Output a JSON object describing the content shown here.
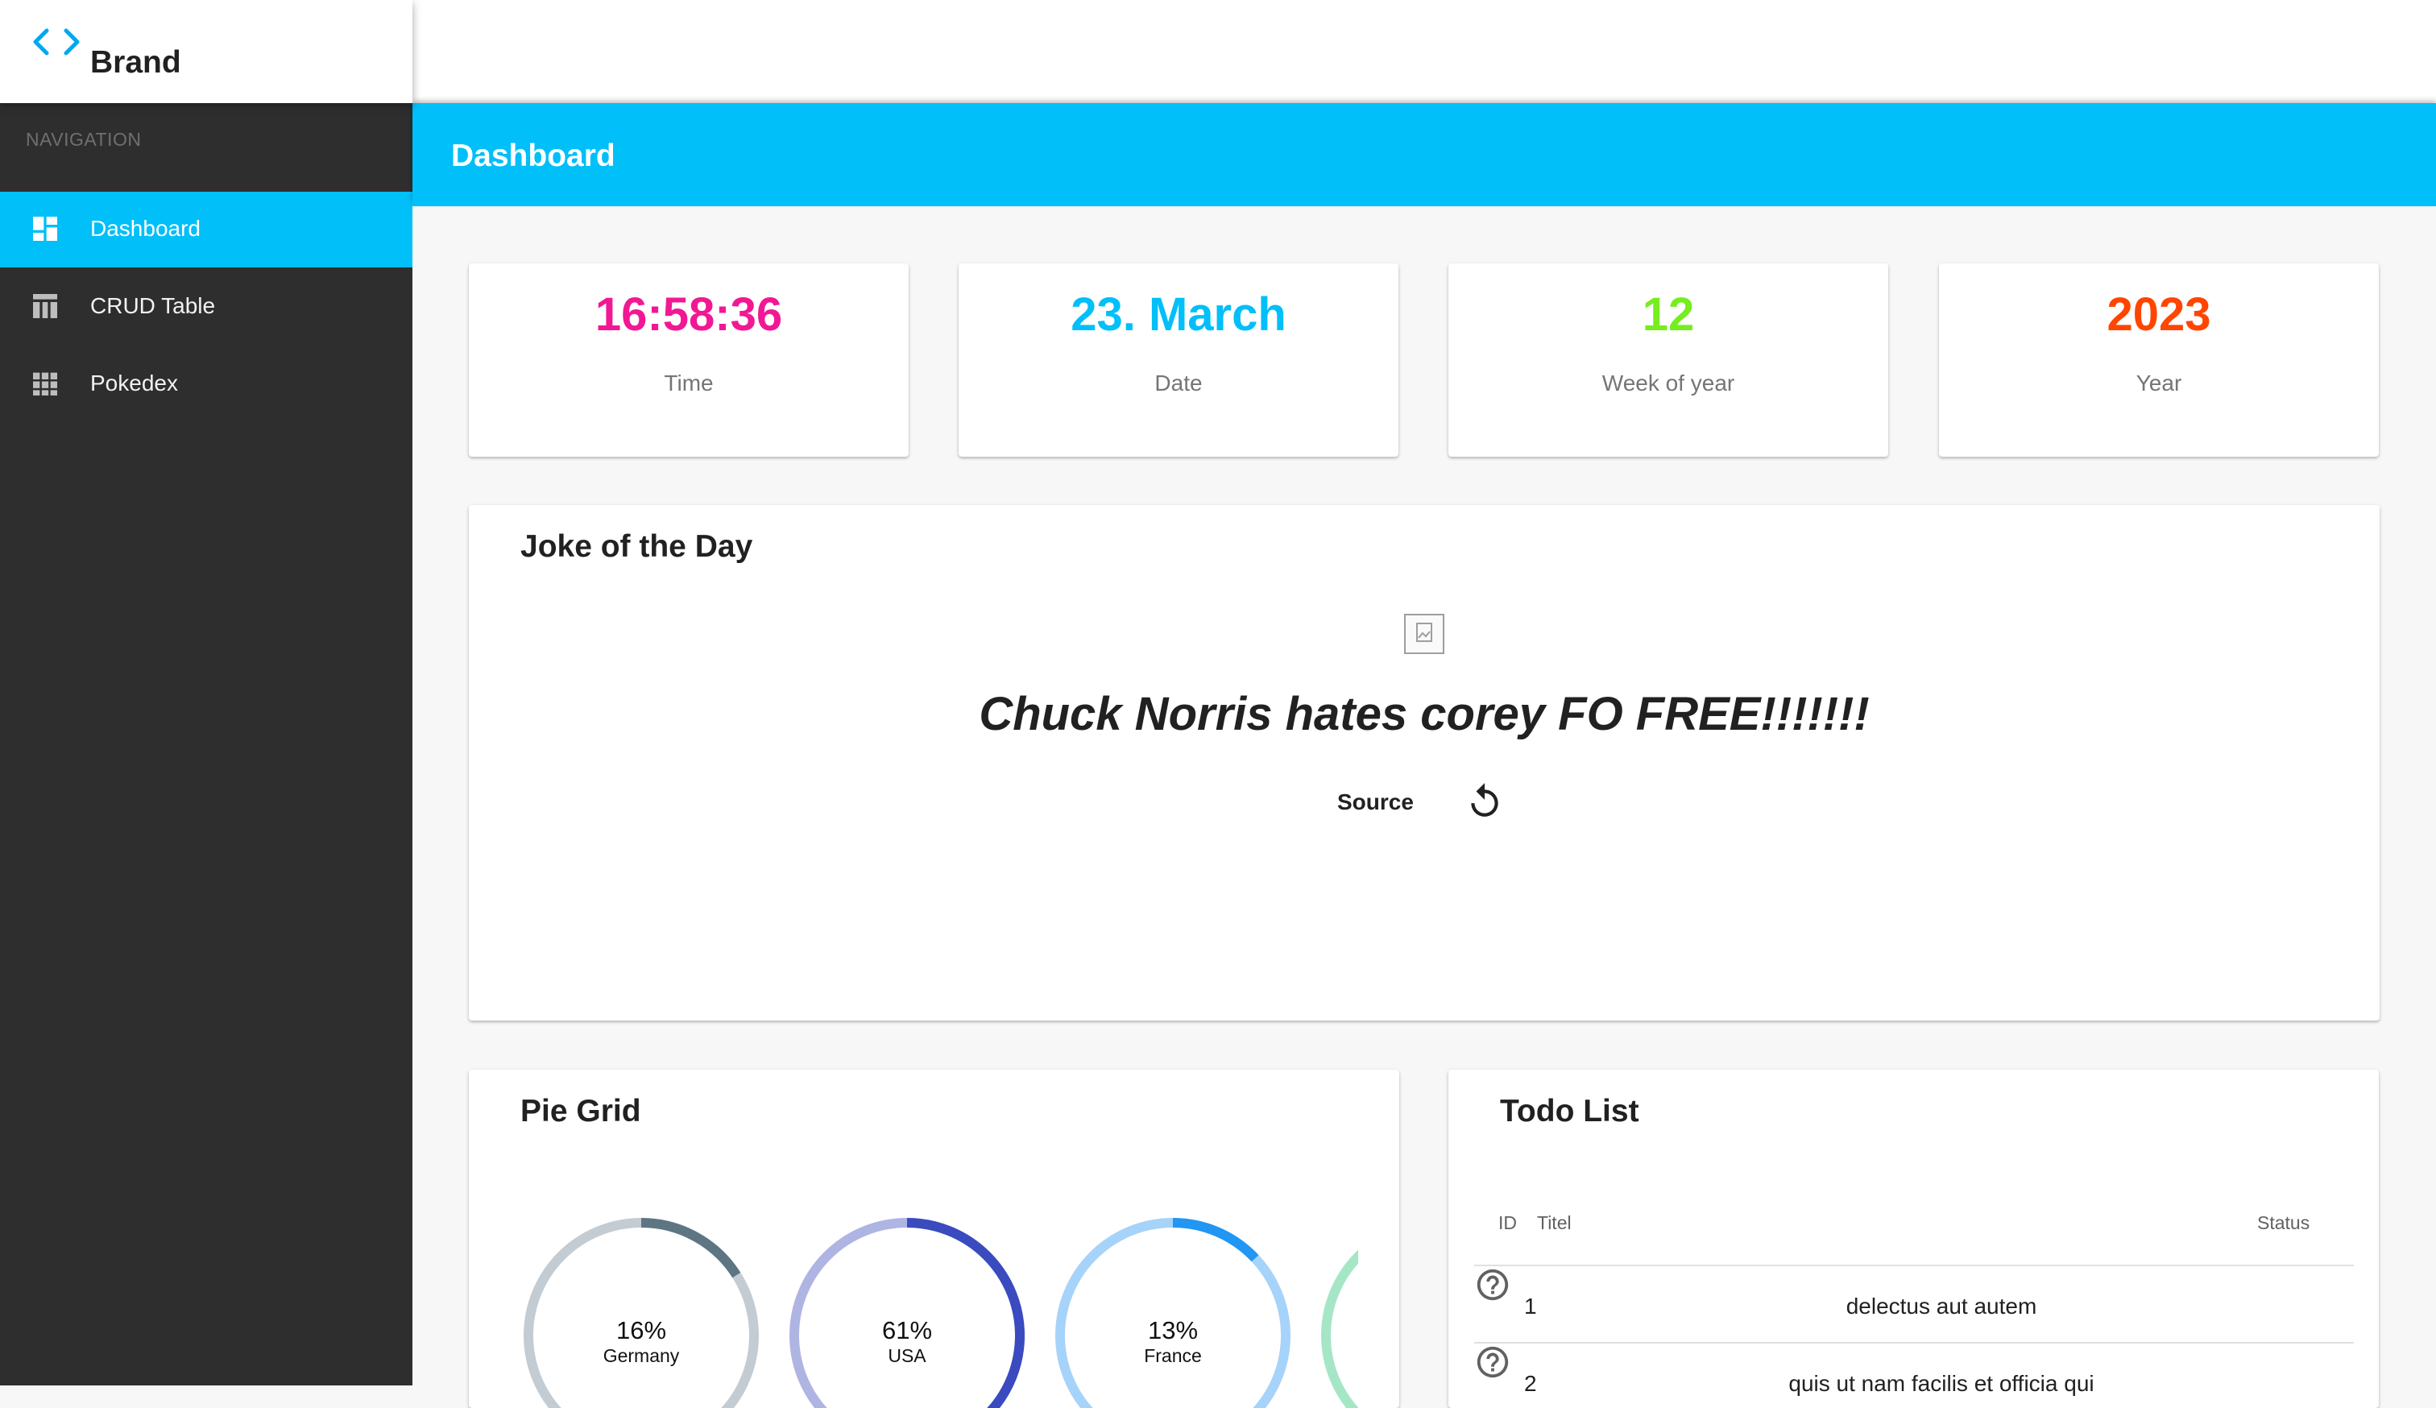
{
  "brand": {
    "name": "Brand",
    "logo_icon": "code-brackets-icon"
  },
  "sidebar": {
    "heading": "NAVIGATION",
    "items": [
      {
        "label": "Dashboard",
        "icon": "dashboard-icon",
        "active": true
      },
      {
        "label": "CRUD Table",
        "icon": "table-icon",
        "active": false
      },
      {
        "label": "Pokedex",
        "icon": "grid-icon",
        "active": false
      }
    ]
  },
  "header": {
    "title": "Dashboard"
  },
  "stats": [
    {
      "value": "16:58:36",
      "label": "Time",
      "color": "#f21894"
    },
    {
      "value": "23. March",
      "label": "Date",
      "color": "#00bff9"
    },
    {
      "value": "12",
      "label": "Week of year",
      "color": "#76ee1e"
    },
    {
      "value": "2023",
      "label": "Year",
      "color": "#ff4500"
    }
  ],
  "joke": {
    "title": "Joke of the Day",
    "text": "Chuck Norris hates corey FO FREE!!!!!!!",
    "source_label": "Source",
    "image_icon": "broken-image-icon",
    "refresh_icon": "refresh-icon"
  },
  "pie_grid": {
    "title": "Pie Grid",
    "chart_data": {
      "type": "pie",
      "categories": [
        "Germany",
        "USA",
        "France"
      ],
      "values": [
        16,
        61,
        13
      ],
      "value_labels": [
        "16%",
        "61%",
        "13%"
      ],
      "colors": [
        {
          "fill": "#5e7584",
          "track": "#c3ccd2"
        },
        {
          "fill": "#3a4bbf",
          "track": "#aeb5e3"
        },
        {
          "fill": "#2196f3",
          "track": "#a6d3f9"
        }
      ]
    },
    "partial_pie_color": "#a5e6c7"
  },
  "todo": {
    "title": "Todo List",
    "columns": {
      "id": "ID",
      "title": "Titel",
      "status": "Status"
    },
    "rows": [
      {
        "id": "1",
        "title": "delectus aut autem",
        "status_icon": "help-circle-icon"
      },
      {
        "id": "2",
        "title": "quis ut nam facilis et officia qui",
        "status_icon": "help-circle-icon"
      }
    ]
  }
}
